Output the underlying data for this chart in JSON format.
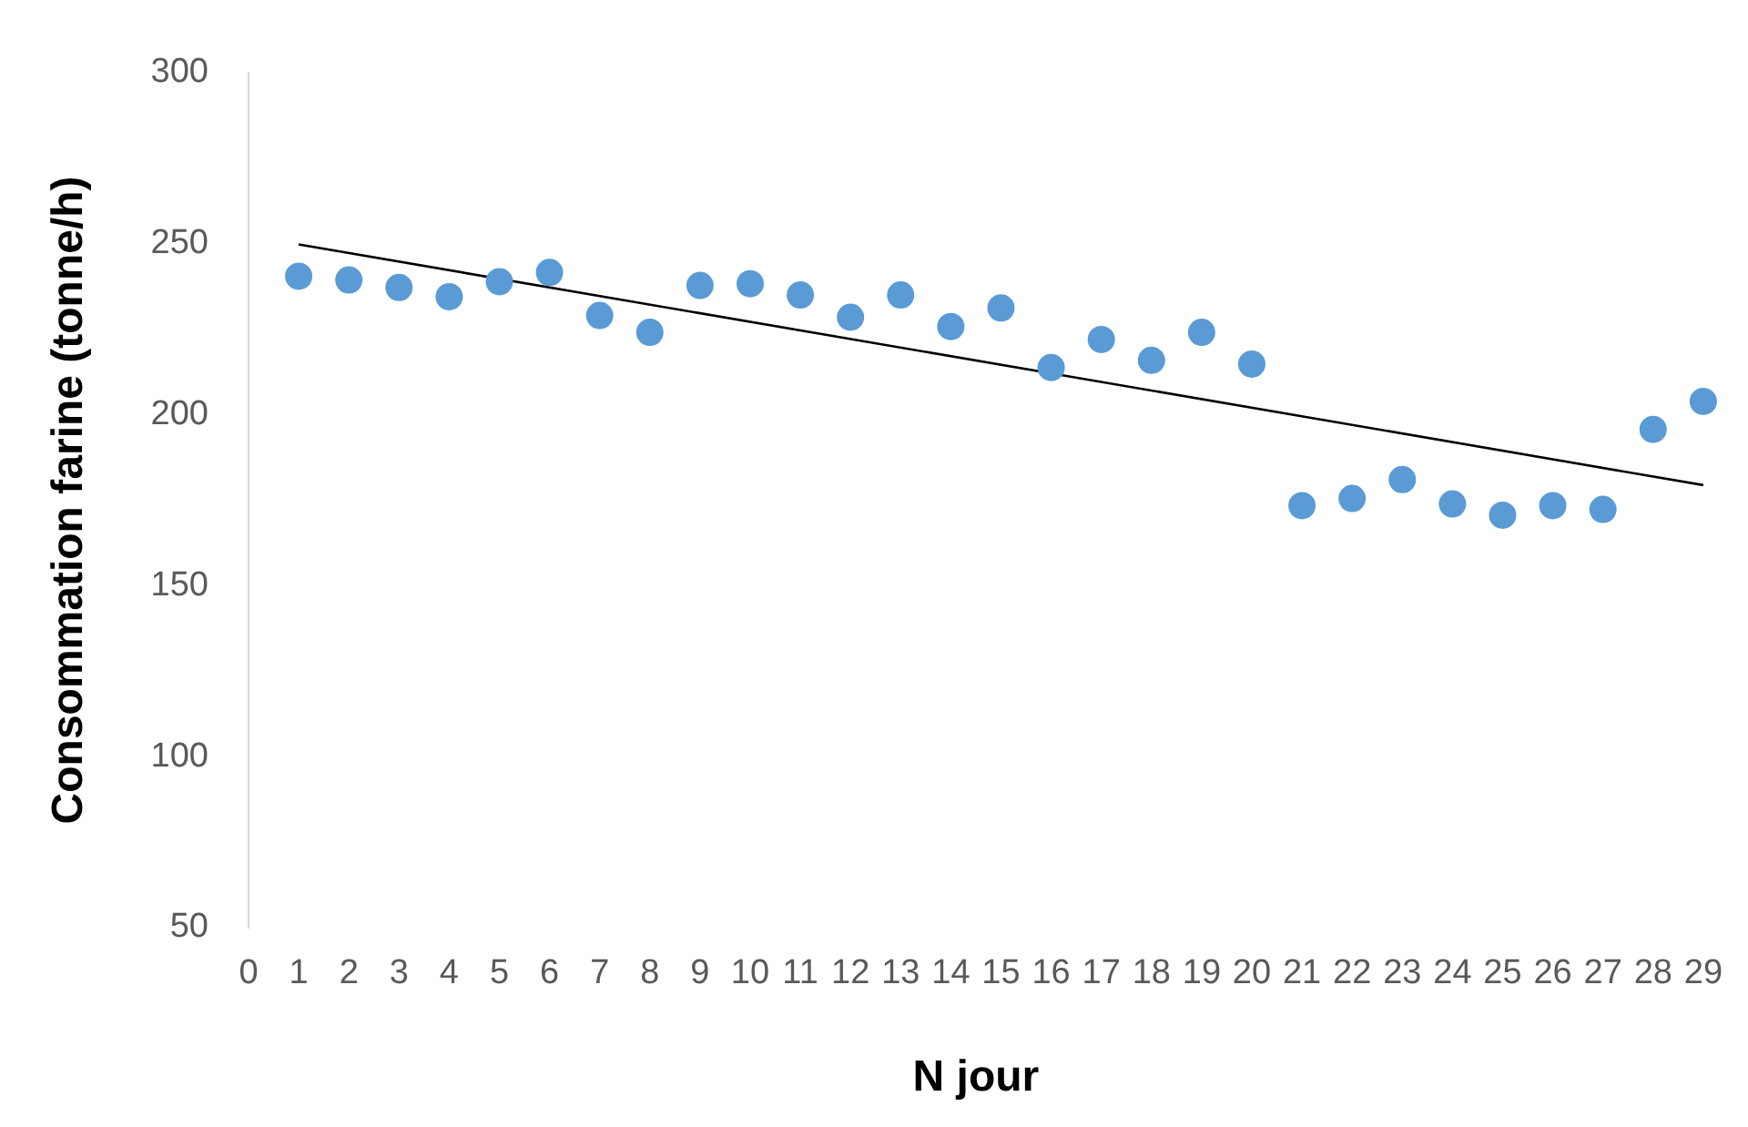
{
  "chart_data": {
    "type": "scatter",
    "xlabel": "N jour",
    "ylabel": "Consommation farine (tonne/h)",
    "x": [
      1,
      2,
      3,
      4,
      5,
      6,
      7,
      8,
      9,
      10,
      11,
      12,
      13,
      14,
      15,
      16,
      17,
      18,
      19,
      20,
      21,
      22,
      23,
      24,
      25,
      26,
      27,
      28,
      29
    ],
    "series": [
      {
        "color": "#5b9bd5",
        "marker": "circle",
        "values": [
          240.5,
          239.4,
          237.2,
          234.5,
          238.9,
          241.6,
          229,
          224.1,
          237.8,
          238.3,
          235,
          228.5,
          235,
          225.8,
          231.2,
          213.8,
          222,
          215.9,
          224.1,
          214.8,
          173.4,
          175.5,
          181,
          173.9,
          170.6,
          173.4,
          172.3,
          195.7,
          203.9
        ]
      },
      {
        "type": "line",
        "x": [
          1,
          29
        ],
        "color": "#000000",
        "marker": "none",
        "values": [
          249.8,
          179.4
        ]
      }
    ],
    "xlim": [
      0,
      29
    ],
    "xticks": [
      0,
      1,
      2,
      3,
      4,
      5,
      6,
      7,
      8,
      9,
      10,
      11,
      12,
      13,
      14,
      15,
      16,
      17,
      18,
      19,
      20,
      21,
      22,
      23,
      24,
      25,
      26,
      27,
      28,
      29
    ],
    "ylim": [
      50,
      300
    ],
    "yticks": [
      50,
      100,
      150,
      200,
      250,
      300
    ],
    "grid": false,
    "legend": false
  }
}
